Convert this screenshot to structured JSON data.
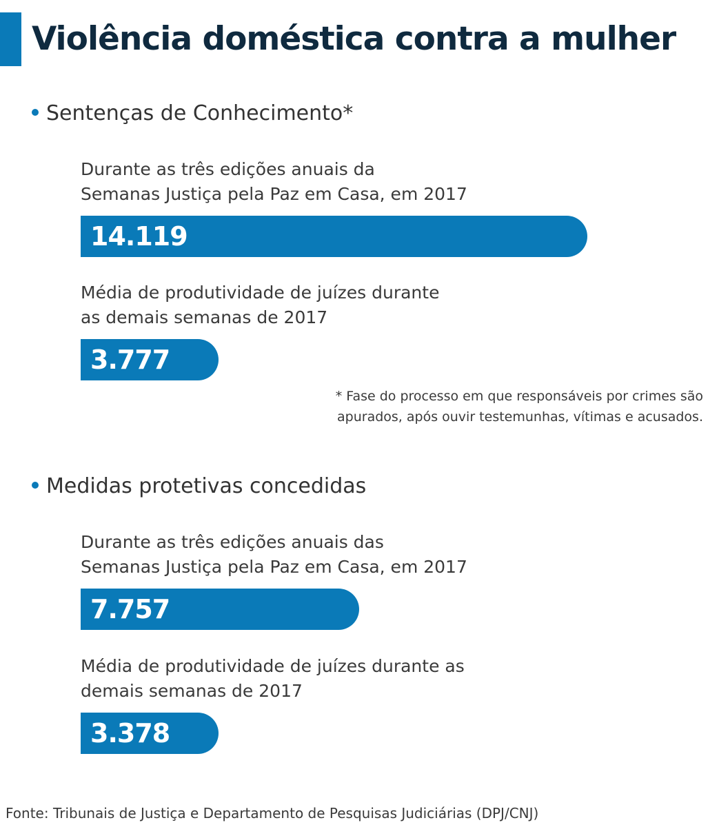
{
  "title": "Violência doméstica contra a mulher",
  "colors": {
    "accent": "#0a7ab8",
    "bar": "#0a7ab8",
    "title": "#0f2a3f",
    "text": "#3a3a3a"
  },
  "sections": [
    {
      "heading": "Sentenças de Conhecimento*",
      "items": [
        {
          "description": "Durante as três edições anuais da\nSemanas Justiça pela Paz em Casa, em 2017",
          "value_label": "14.119"
        },
        {
          "description": "Média de produtividade de juízes durante\nas demais semanas de 2017",
          "value_label": "3.777"
        }
      ]
    },
    {
      "heading": "Medidas protetivas concedidas",
      "items": [
        {
          "description": "Durante as três edições anuais das\nSemanas Justiça pela Paz em Casa, em 2017",
          "value_label": "7.757"
        },
        {
          "description": "Média de produtividade de juízes durante as\ndemais semanas de 2017",
          "value_label": "3.378"
        }
      ]
    }
  ],
  "footnote": "* Fase do processo em que responsáveis por crimes são\napurados, após ouvir testemunhas, vítimas e acusados.",
  "source": "Fonte: Tribunais de Justiça e Departamento de Pesquisas Judiciárias (DPJ/CNJ)",
  "chart_data": {
    "type": "bar",
    "orientation": "horizontal",
    "title": "Violência doméstica contra a mulher",
    "groups": [
      {
        "name": "Sentenças de Conhecimento*",
        "categories": [
          "Durante as três edições anuais da Semanas Justiça pela Paz em Casa, em 2017",
          "Média de produtividade de juízes durante as demais semanas de 2017"
        ],
        "values": [
          14119,
          3777
        ]
      },
      {
        "name": "Medidas protetivas concedidas",
        "categories": [
          "Durante as três edições anuais das Semanas Justiça pela Paz em Casa, em 2017",
          "Média de produtividade de juízes durante as demais semanas de 2017"
        ],
        "values": [
          7757,
          3378
        ]
      }
    ],
    "grid": false,
    "legend": "none"
  }
}
